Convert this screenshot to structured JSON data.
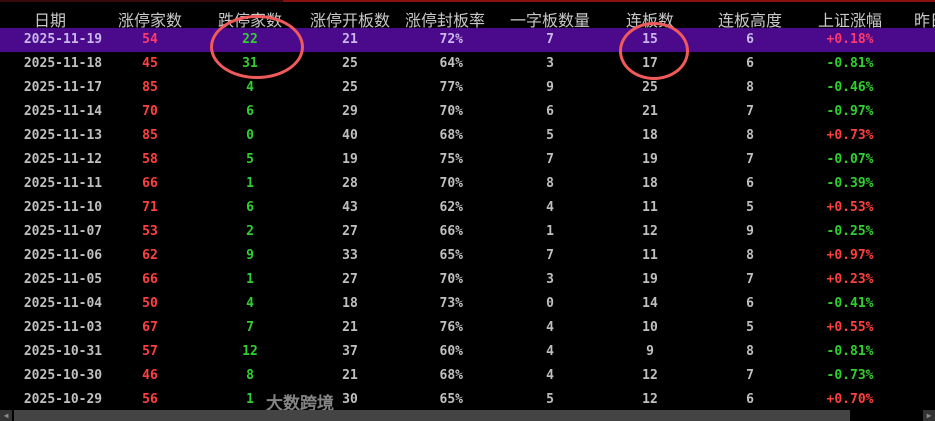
{
  "columns": [
    "日期",
    "涨停家数",
    "跌停家数",
    "涨停开板数",
    "涨停封板率",
    "一字板数量",
    "连板数",
    "连板高度",
    "上证涨幅",
    "昨日"
  ],
  "selected_row": 0,
  "rows": [
    {
      "date": "2025-11-19",
      "up_limit": "54",
      "down_limit": "22",
      "opened": "21",
      "seal_rate": "72%",
      "one_word": "7",
      "consecutive": "15",
      "height": "6",
      "sh_change": "+0.18%"
    },
    {
      "date": "2025-11-18",
      "up_limit": "45",
      "down_limit": "31",
      "opened": "25",
      "seal_rate": "64%",
      "one_word": "3",
      "consecutive": "17",
      "height": "6",
      "sh_change": "-0.81%"
    },
    {
      "date": "2025-11-17",
      "up_limit": "85",
      "down_limit": "4",
      "opened": "25",
      "seal_rate": "77%",
      "one_word": "9",
      "consecutive": "25",
      "height": "8",
      "sh_change": "-0.46%"
    },
    {
      "date": "2025-11-14",
      "up_limit": "70",
      "down_limit": "6",
      "opened": "29",
      "seal_rate": "70%",
      "one_word": "6",
      "consecutive": "21",
      "height": "7",
      "sh_change": "-0.97%"
    },
    {
      "date": "2025-11-13",
      "up_limit": "85",
      "down_limit": "0",
      "opened": "40",
      "seal_rate": "68%",
      "one_word": "5",
      "consecutive": "18",
      "height": "8",
      "sh_change": "+0.73%"
    },
    {
      "date": "2025-11-12",
      "up_limit": "58",
      "down_limit": "5",
      "opened": "19",
      "seal_rate": "75%",
      "one_word": "7",
      "consecutive": "19",
      "height": "7",
      "sh_change": "-0.07%"
    },
    {
      "date": "2025-11-11",
      "up_limit": "66",
      "down_limit": "1",
      "opened": "28",
      "seal_rate": "70%",
      "one_word": "8",
      "consecutive": "18",
      "height": "6",
      "sh_change": "-0.39%"
    },
    {
      "date": "2025-11-10",
      "up_limit": "71",
      "down_limit": "6",
      "opened": "43",
      "seal_rate": "62%",
      "one_word": "4",
      "consecutive": "11",
      "height": "5",
      "sh_change": "+0.53%"
    },
    {
      "date": "2025-11-07",
      "up_limit": "53",
      "down_limit": "2",
      "opened": "27",
      "seal_rate": "66%",
      "one_word": "1",
      "consecutive": "12",
      "height": "9",
      "sh_change": "-0.25%"
    },
    {
      "date": "2025-11-06",
      "up_limit": "62",
      "down_limit": "9",
      "opened": "33",
      "seal_rate": "65%",
      "one_word": "7",
      "consecutive": "11",
      "height": "8",
      "sh_change": "+0.97%"
    },
    {
      "date": "2025-11-05",
      "up_limit": "66",
      "down_limit": "1",
      "opened": "27",
      "seal_rate": "70%",
      "one_word": "3",
      "consecutive": "19",
      "height": "7",
      "sh_change": "+0.23%"
    },
    {
      "date": "2025-11-04",
      "up_limit": "50",
      "down_limit": "4",
      "opened": "18",
      "seal_rate": "73%",
      "one_word": "0",
      "consecutive": "14",
      "height": "6",
      "sh_change": "-0.41%"
    },
    {
      "date": "2025-11-03",
      "up_limit": "67",
      "down_limit": "7",
      "opened": "21",
      "seal_rate": "76%",
      "one_word": "4",
      "consecutive": "10",
      "height": "5",
      "sh_change": "+0.55%"
    },
    {
      "date": "2025-10-31",
      "up_limit": "57",
      "down_limit": "12",
      "opened": "37",
      "seal_rate": "60%",
      "one_word": "4",
      "consecutive": "9",
      "height": "8",
      "sh_change": "-0.81%"
    },
    {
      "date": "2025-10-30",
      "up_limit": "46",
      "down_limit": "8",
      "opened": "21",
      "seal_rate": "68%",
      "one_word": "4",
      "consecutive": "12",
      "height": "7",
      "sh_change": "-0.73%"
    },
    {
      "date": "2025-10-29",
      "up_limit": "56",
      "down_limit": "1",
      "opened": "30",
      "seal_rate": "65%",
      "one_word": "5",
      "consecutive": "12",
      "height": "6",
      "sh_change": "+0.70%"
    }
  ],
  "colors": {
    "up": "#ff4040",
    "down": "#30d030",
    "selected_bg": "#4b0a8c",
    "annotation": "#f05a5a"
  },
  "watermark": "大数跨境"
}
